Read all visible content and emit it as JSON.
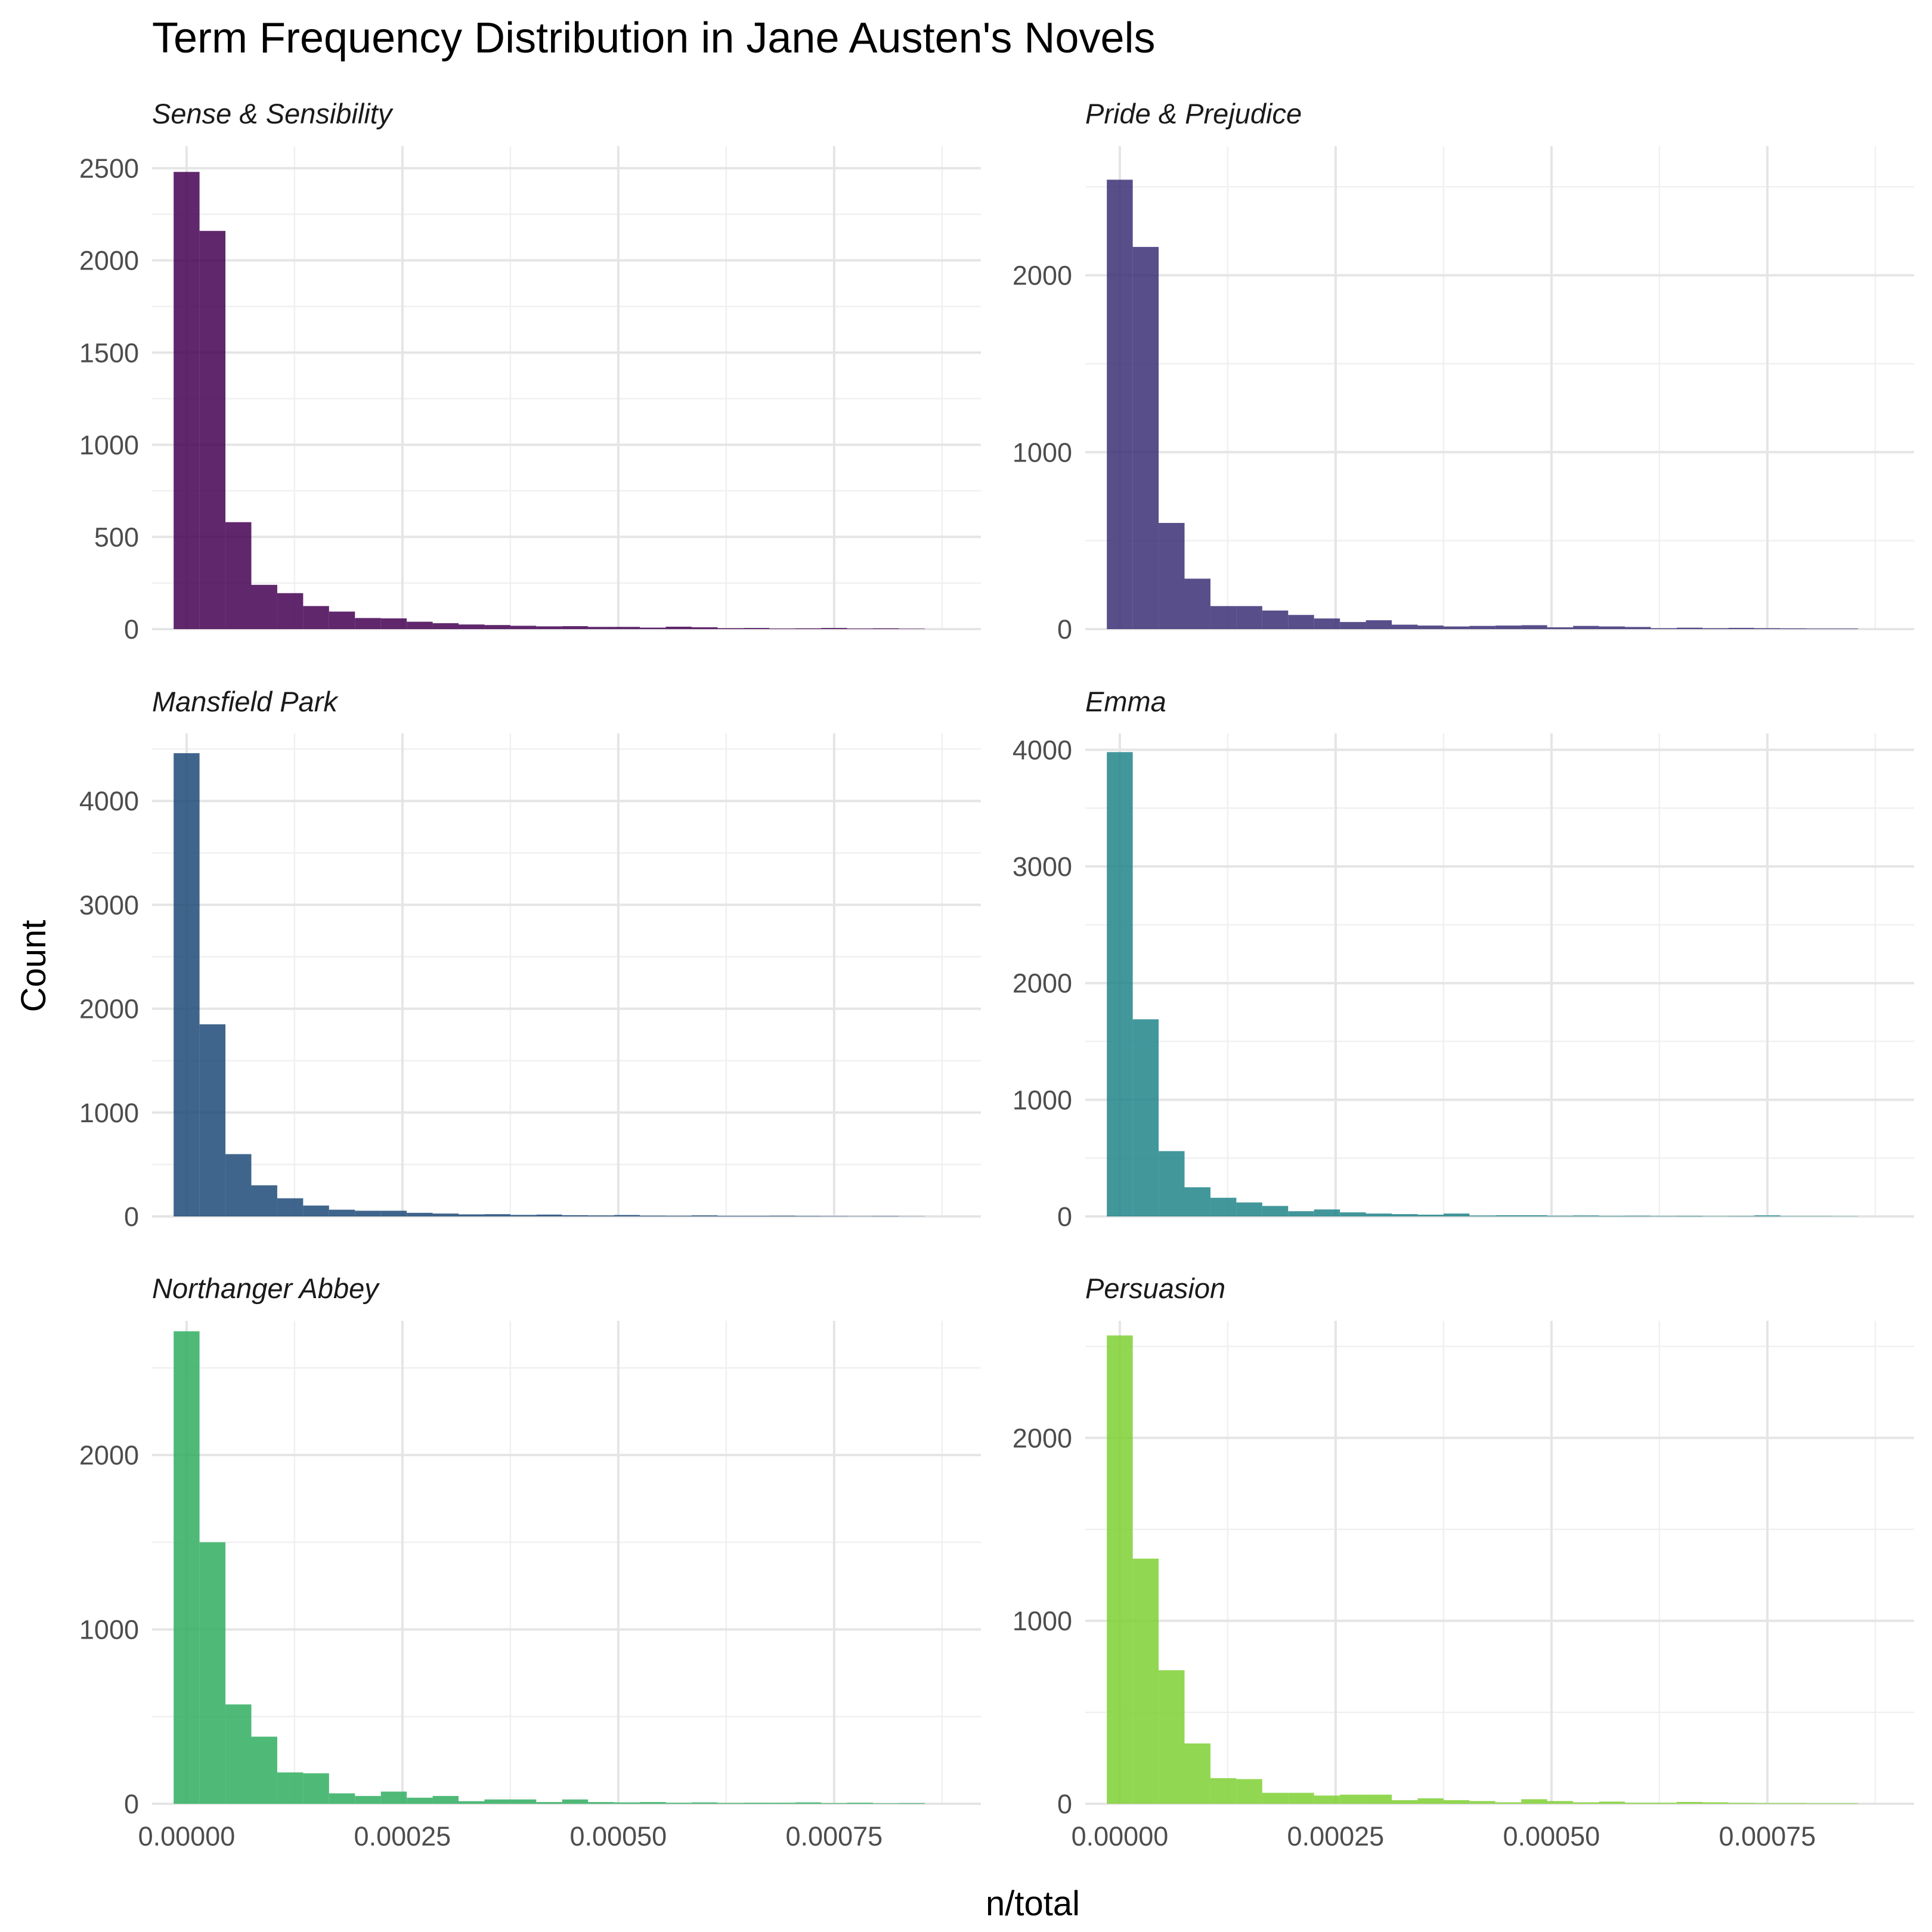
{
  "chart_data": {
    "type": "bar",
    "title": "Term Frequency Distribution in Jane Austen's Novels",
    "xlabel": "n/total",
    "ylabel": "Count",
    "grid": true,
    "legend": "none",
    "x_range": [
      -4e-05,
      0.00092
    ],
    "x_ticks": [
      0,
      0.00025,
      0.0005,
      0.00075
    ],
    "x_tick_labels": [
      "0.00000",
      "0.00025",
      "0.00050",
      "0.00075"
    ],
    "bin_start": -1.5e-05,
    "bin_width": 3e-05,
    "panels": [
      {
        "name": "Sense & Sensibility",
        "color": "#440154",
        "ylim": [
          0,
          2620
        ],
        "y_ticks": [
          0,
          500,
          1000,
          1500,
          2000,
          2500
        ],
        "values": [
          2480,
          2160,
          580,
          240,
          195,
          125,
          95,
          60,
          58,
          40,
          32,
          25,
          22,
          18,
          15,
          16,
          12,
          12,
          8,
          13,
          10,
          5,
          6,
          3,
          4,
          6,
          3,
          4,
          2
        ]
      },
      {
        "name": "Pride & Prejudice",
        "color": "#3b2f75",
        "ylim": [
          0,
          2730
        ],
        "y_ticks": [
          0,
          1000,
          2000
        ],
        "values": [
          2540,
          2160,
          600,
          285,
          130,
          130,
          105,
          80,
          60,
          40,
          50,
          25,
          20,
          15,
          18,
          20,
          22,
          10,
          18,
          15,
          12,
          5,
          8,
          5,
          7,
          5,
          4,
          3,
          3
        ]
      },
      {
        "name": "Emma",
        "color": "#21858a",
        "ylim": [
          0,
          4140
        ],
        "y_ticks": [
          0,
          1000,
          2000,
          3000,
          4000
        ],
        "values": [
          3980,
          1690,
          560,
          250,
          160,
          120,
          90,
          45,
          60,
          35,
          25,
          20,
          15,
          25,
          8,
          10,
          10,
          6,
          8,
          5,
          6,
          4,
          5,
          3,
          4,
          9,
          3,
          3,
          2
        ]
      },
      {
        "name": "Mansfield Park",
        "color": "#1e4a78",
        "ylim": [
          0,
          4650
        ],
        "y_ticks": [
          0,
          1000,
          2000,
          3000,
          4000
        ],
        "values": [
          4460,
          1850,
          600,
          300,
          175,
          105,
          65,
          55,
          55,
          35,
          28,
          20,
          22,
          15,
          18,
          12,
          10,
          14,
          8,
          7,
          10,
          6,
          6,
          7,
          5,
          4,
          3,
          4,
          2
        ]
      },
      {
        "name": "Northanger Abbey",
        "color": "#30ae60",
        "ylim": [
          0,
          2770
        ],
        "y_ticks": [
          0,
          1000,
          2000
        ],
        "values": [
          2710,
          1500,
          570,
          385,
          180,
          175,
          60,
          45,
          70,
          35,
          45,
          15,
          25,
          25,
          10,
          25,
          10,
          8,
          10,
          6,
          8,
          5,
          6,
          6,
          8,
          4,
          6,
          3,
          4
        ]
      },
      {
        "name": "Persuasion",
        "color": "#7fd034",
        "ylim": [
          0,
          2640
        ],
        "y_ticks": [
          0,
          1000,
          2000
        ],
        "values": [
          2560,
          1340,
          730,
          330,
          140,
          135,
          60,
          60,
          45,
          50,
          50,
          20,
          30,
          20,
          15,
          8,
          25,
          15,
          8,
          12,
          6,
          6,
          10,
          8,
          5,
          4,
          4,
          3,
          3
        ]
      }
    ]
  }
}
